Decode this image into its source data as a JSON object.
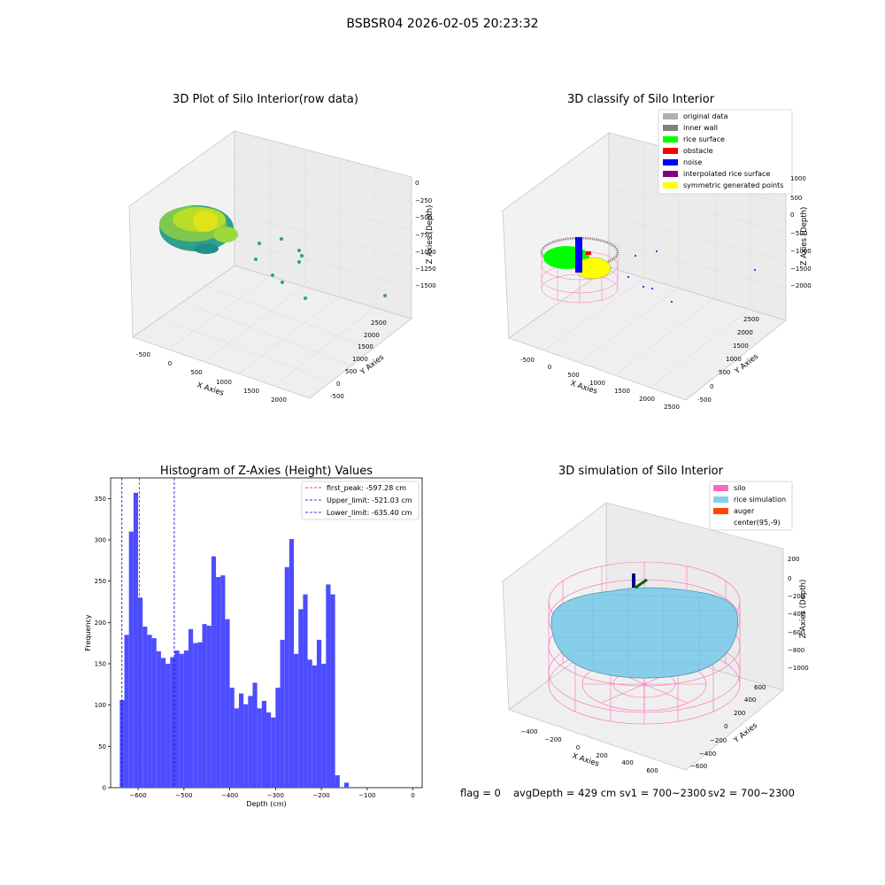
{
  "suptitle": "BSBSR04 2026-02-05 20:23:32",
  "panels": {
    "raw": {
      "title": "3D Plot of Silo Interior(row data)",
      "xlabel": "X Axies",
      "ylabel": "Y Axies",
      "zlabel": "Z Axies (Depth)",
      "xticks": [
        "-500",
        "0",
        "500",
        "1000",
        "1500",
        "2000"
      ],
      "yticks": [
        "-500",
        "0",
        "500",
        "1000",
        "1500",
        "2000",
        "2500"
      ],
      "zticks": [
        "0",
        "−250",
        "−500",
        "−750",
        "−1000",
        "−1250",
        "−1500"
      ]
    },
    "classify": {
      "title": "3D classify of Silo Interior",
      "xlabel": "X Axies",
      "ylabel": "Y Axies",
      "zlabel": "Z Axies (Depth)",
      "xticks": [
        "-500",
        "0",
        "500",
        "1000",
        "1500",
        "2000",
        "2500"
      ],
      "yticks": [
        "-500",
        "0",
        "500",
        "1000",
        "1500",
        "2000",
        "2500"
      ],
      "zticks": [
        "1000",
        "500",
        "0",
        "−500",
        "−1000",
        "−1500",
        "−2000"
      ],
      "legend": [
        {
          "label": "original data",
          "color": "#b0b0b0"
        },
        {
          "label": "inner wall",
          "color": "#808080"
        },
        {
          "label": "rice surface",
          "color": "#00ff00"
        },
        {
          "label": "obstacle",
          "color": "#ff0000"
        },
        {
          "label": "noise",
          "color": "#0000ff"
        },
        {
          "label": "interpolated rice surface",
          "color": "#800080"
        },
        {
          "label": "symmetric generated points",
          "color": "#ffff00"
        }
      ]
    },
    "simulation": {
      "title": "3D simulation of Silo Interior",
      "xlabel": "X Axies",
      "ylabel": "Y Axies",
      "zlabel": "Z Axies (Depth)",
      "xticks": [
        "−400",
        "−200",
        "0",
        "200",
        "400",
        "600"
      ],
      "yticks": [
        "−600",
        "−400",
        "−200",
        "0",
        "200",
        "400",
        "600"
      ],
      "zticks": [
        "200",
        "0",
        "−200",
        "−400",
        "−600",
        "−800",
        "−1000"
      ],
      "legend": [
        {
          "label": "silo",
          "color": "#ff69b4"
        },
        {
          "label": "rice simulation",
          "color": "#87ceeb"
        },
        {
          "label": "auger",
          "color": "#ff4500"
        },
        {
          "label": "center(95,-9)",
          "color": null
        }
      ]
    }
  },
  "footer": {
    "flag": "flag = 0",
    "avgdepth": "avgDepth = 429 cm",
    "sv1": "sv1 = 700~2300",
    "sv2": "sv2 = 700~2300"
  },
  "colors": {
    "histogram_bar": "#4d4dff",
    "first_peak_line": "#ff0000",
    "limit_lines": "#0000cc",
    "silo_wire": "#ff69b4",
    "rice_surface": "#87ceeb"
  },
  "chart_data": {
    "type": "bar",
    "title": "Histogram of Z-Axies (Height) Values",
    "xlabel": "Depth (cm)",
    "ylabel": "Frequency",
    "xlim": [
      -660,
      20
    ],
    "ylim": [
      0,
      375
    ],
    "xticks": [
      -600,
      -500,
      -400,
      -300,
      -200,
      -100,
      0
    ],
    "yticks": [
      0,
      50,
      100,
      150,
      200,
      250,
      300,
      350
    ],
    "bin_start": -640,
    "bin_width": 10,
    "values": [
      106,
      185,
      310,
      357,
      230,
      195,
      185,
      181,
      165,
      157,
      150,
      158,
      166,
      162,
      166,
      192,
      175,
      176,
      198,
      196,
      280,
      255,
      257,
      204,
      121,
      96,
      114,
      101,
      111,
      127,
      96,
      105,
      91,
      85,
      121,
      179,
      267,
      301,
      162,
      216,
      234,
      155,
      148,
      179,
      150,
      246,
      234,
      15,
      0,
      6
    ],
    "vlines": [
      {
        "label": "first_peak: -597.28 cm",
        "x": -597.28,
        "color": "#ff0000"
      },
      {
        "label": "Upper_limit: -521.03 cm",
        "x": -521.03,
        "color": "#0000cc"
      },
      {
        "label": "Lower_limit: -635.40 cm",
        "x": -635.4,
        "color": "#0000cc"
      }
    ],
    "grid": false,
    "legend_position": "top-right"
  }
}
